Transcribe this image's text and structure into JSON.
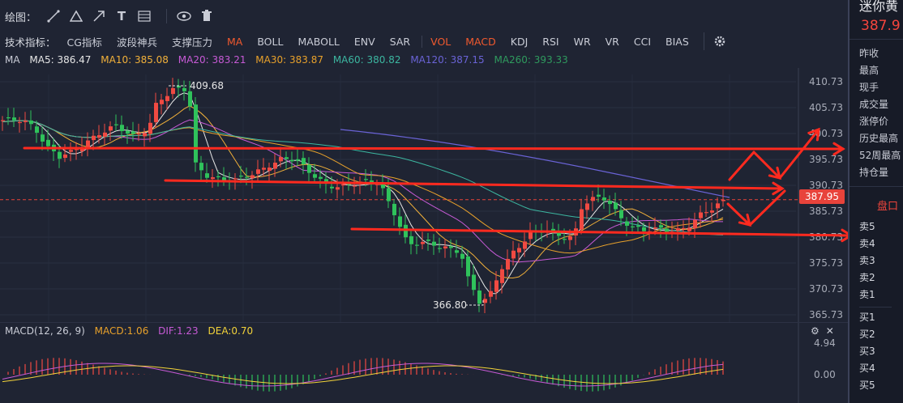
{
  "toolbar": {
    "draw_label": "绘图：",
    "text_tool": "T",
    "colors": {
      "active_indicator": "#f0592e",
      "up": "#2fc25b",
      "down": "#f04a42"
    }
  },
  "indicators": {
    "label": "技术指标：",
    "items": [
      "CG指标",
      "波段神兵",
      "支撑压力",
      "MA",
      "BOLL",
      "MABOLL",
      "ENV",
      "SAR",
      "VOL",
      "MACD",
      "KDJ",
      "RSI",
      "WR",
      "VR",
      "CCI",
      "BIAS"
    ],
    "active": [
      "MA",
      "VOL",
      "MACD"
    ]
  },
  "ma_legend": {
    "title": "MA",
    "ma5": "MA5: 386.47",
    "ma10": "MA10: 385.08",
    "ma20": "MA20: 383.21",
    "ma30": "MA30: 383.87",
    "ma60": "MA60: 380.82",
    "ma120": "MA120: 387.15",
    "ma260": "MA260: 393.33"
  },
  "price_axis": [
    "410.73",
    "405.73",
    "400.73",
    "395.73",
    "390.73",
    "385.73",
    "380.73",
    "375.73",
    "370.73",
    "365.73"
  ],
  "current_price_tag": "387.95",
  "annotations": {
    "high": "409.68",
    "low": "366.80"
  },
  "macd_legend": {
    "title": "MACD(12, 26, 9)",
    "macd": "MACD:1.06",
    "dif": "DIF:1.23",
    "dea": "DEA:0.70"
  },
  "macd_axis": [
    "4.94",
    "0.00"
  ],
  "right_panel": {
    "name": "迷你黄",
    "price": "387.9",
    "fields": [
      "昨收",
      "最高",
      "现手",
      "成交量",
      "涨停价",
      "历史最高",
      "52周最高",
      "持仓量"
    ],
    "book_title": "盘口",
    "sells": [
      "卖5",
      "卖4",
      "卖3",
      "卖2",
      "卖1"
    ],
    "buys": [
      "买1",
      "买2",
      "买3",
      "买4",
      "买5"
    ]
  }
}
